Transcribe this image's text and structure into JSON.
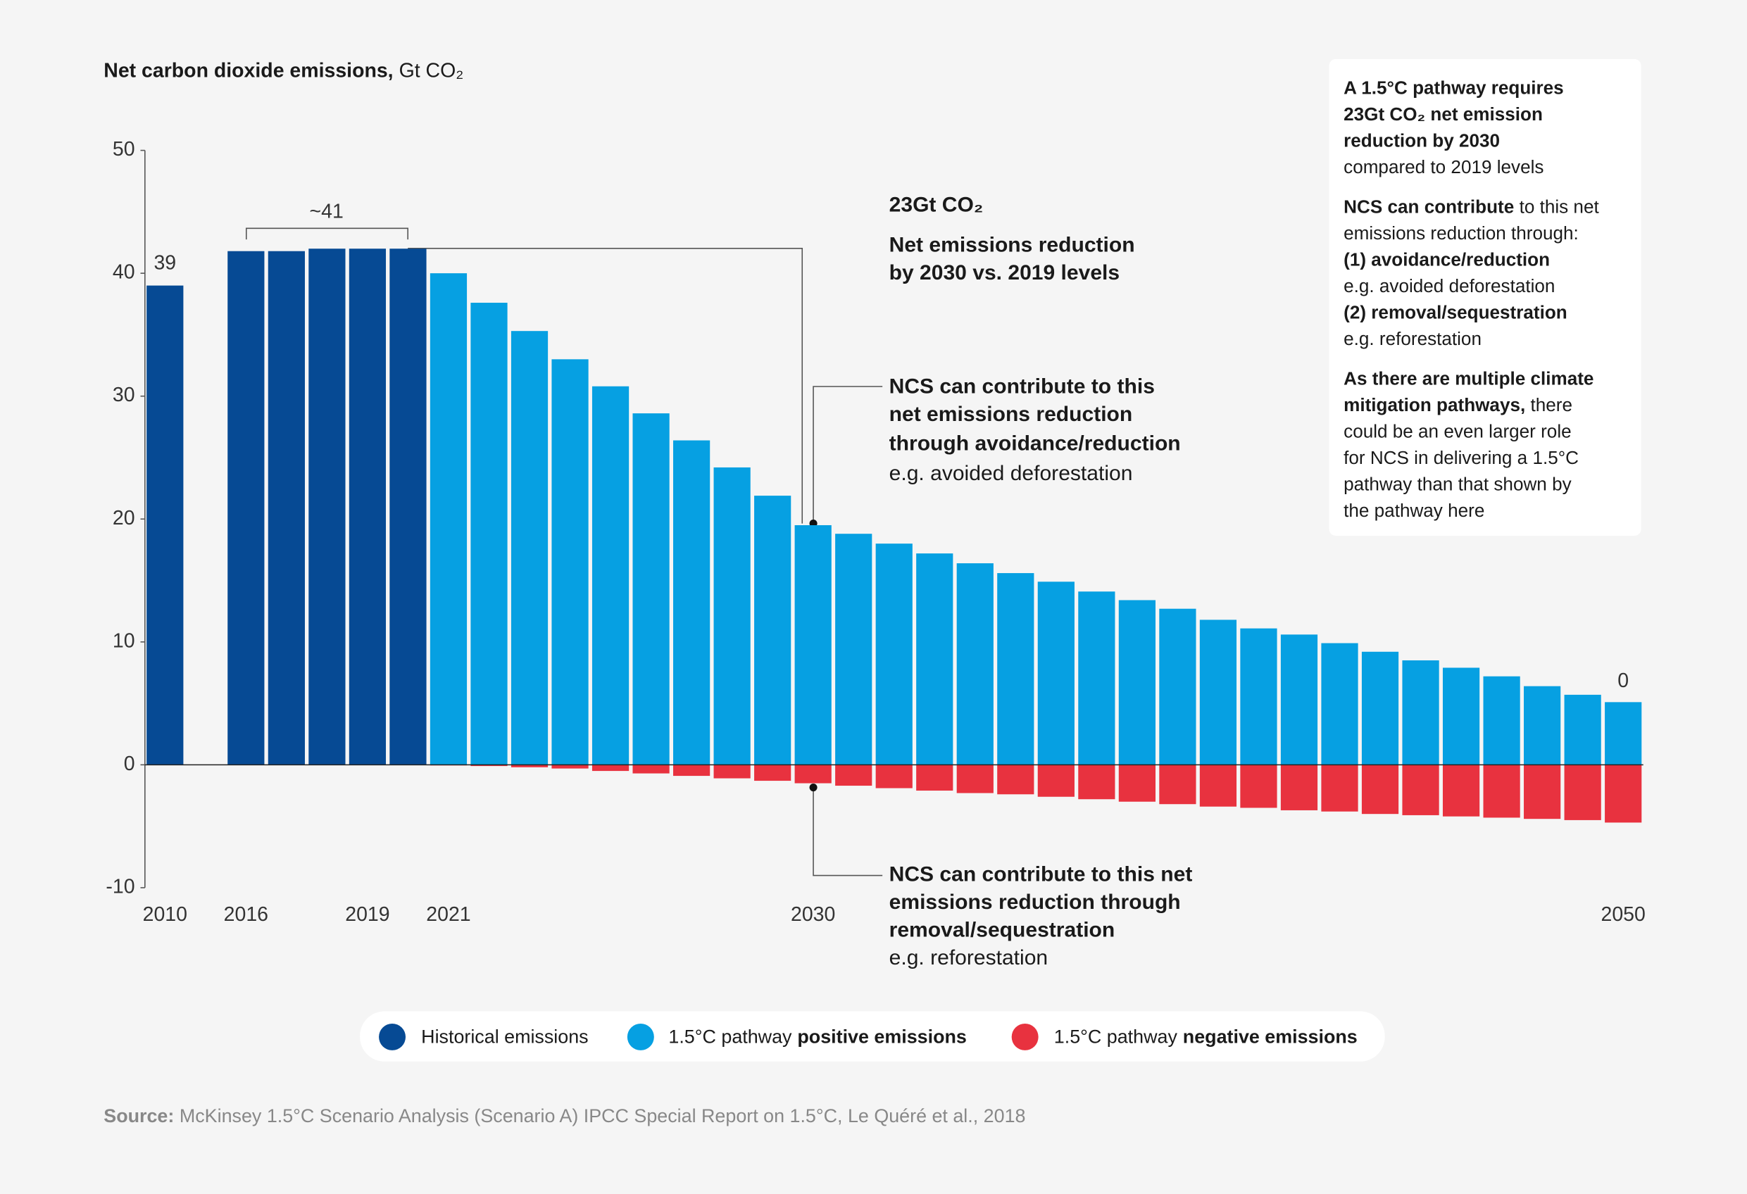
{
  "chart_data": {
    "type": "bar",
    "title": [
      {
        "text": "Net carbon dioxide emissions,",
        "bold": true
      },
      {
        "text": "Gt CO₂",
        "bold": false
      }
    ],
    "categories": [
      "2010",
      null,
      "2016",
      null,
      null,
      "2019",
      null,
      "2021",
      null,
      null,
      null,
      null,
      null,
      null,
      null,
      null,
      "2030",
      null,
      null,
      null,
      null,
      null,
      null,
      null,
      null,
      null,
      null,
      null,
      null,
      null,
      null,
      null,
      null,
      null,
      null,
      null,
      "2050"
    ],
    "series": [
      {
        "name": "Historical emissions",
        "color": "#064a94",
        "values": [
          39,
          null,
          41.8,
          41.8,
          42.0,
          42.0,
          42.0,
          null,
          null,
          null,
          null,
          null,
          null,
          null,
          null,
          null,
          null,
          null,
          null,
          null,
          null,
          null,
          null,
          null,
          null,
          null,
          null,
          null,
          null,
          null,
          null,
          null,
          null,
          null,
          null,
          null,
          null
        ]
      },
      {
        "name": "1.5°C pathway",
        "name_bold": "positive emissions",
        "color": "#06a0e2",
        "values": [
          null,
          null,
          null,
          null,
          null,
          null,
          null,
          40.0,
          37.6,
          35.3,
          33.0,
          30.8,
          28.6,
          26.4,
          24.2,
          21.9,
          19.5,
          18.8,
          18.0,
          17.2,
          16.4,
          15.6,
          14.9,
          14.1,
          13.4,
          12.7,
          11.8,
          11.1,
          10.6,
          9.9,
          9.2,
          8.5,
          7.9,
          7.2,
          6.4,
          5.7,
          5.1
        ]
      },
      {
        "name": "1.5°C pathway",
        "name_bold": "negative emissions",
        "color": "#e8323f",
        "values": [
          null,
          null,
          null,
          null,
          null,
          null,
          null,
          -0.05,
          -0.1,
          -0.2,
          -0.3,
          -0.5,
          -0.7,
          -0.9,
          -1.1,
          -1.3,
          -1.5,
          -1.7,
          -1.9,
          -2.1,
          -2.3,
          -2.4,
          -2.6,
          -2.8,
          -3.0,
          -3.2,
          -3.4,
          -3.5,
          -3.7,
          -3.8,
          -4.0,
          -4.1,
          -4.2,
          -4.3,
          -4.4,
          -4.5,
          -4.7
        ]
      }
    ],
    "ylim": [
      -10,
      50
    ],
    "yticks": [
      -10,
      0,
      10,
      20,
      30,
      40,
      50
    ],
    "bracket_label": "~41",
    "end_label": "0",
    "annotations": [
      [
        [
          {
            "text": "23Gt CO₂",
            "bold": true
          }
        ]
      ],
      [
        [
          {
            "text": "Net emissions reduction",
            "bold": true
          }
        ],
        [
          {
            "text": "by 2030 vs. 2019 levels",
            "bold": true
          }
        ]
      ],
      [
        [
          {
            "text": "NCS can contribute to this",
            "bold": true
          }
        ],
        [
          {
            "text": "net emissions reduction",
            "bold": true
          }
        ],
        [
          {
            "text": "through avoidance/reduction",
            "bold": true
          }
        ],
        [
          {
            "text": "e.g. avoided deforestation",
            "bold": false
          }
        ]
      ],
      [
        [
          {
            "text": "NCS can contribute to this net",
            "bold": true
          }
        ],
        [
          {
            "text": "emissions reduction through",
            "bold": true
          }
        ],
        [
          {
            "text": "removal/sequestration",
            "bold": true
          }
        ],
        [
          {
            "text": "e.g. reforestation",
            "bold": false
          }
        ]
      ]
    ],
    "side_box": [
      [
        [
          {
            "text": "A 1.5°C pathway requires",
            "bold": true
          }
        ],
        [
          {
            "text": "23Gt CO₂ net emission",
            "bold": true
          }
        ],
        [
          {
            "text": "reduction by 2030",
            "bold": true
          }
        ],
        [
          {
            "text": "compared to 2019 levels",
            "bold": false
          }
        ]
      ],
      [
        [
          {
            "text": "NCS can contribute",
            "bold": true
          },
          {
            "text": "to this net",
            "bold": false
          }
        ],
        [
          {
            "text": "emissions reduction through:",
            "bold": false
          }
        ],
        [
          {
            "text": "(1) avoidance/reduction",
            "bold": true
          }
        ],
        [
          {
            "text": "e.g. avoided deforestation",
            "bold": false
          }
        ],
        [
          {
            "text": "(2) removal/sequestration",
            "bold": true
          }
        ],
        [
          {
            "text": "e.g. reforestation",
            "bold": false
          }
        ]
      ],
      [
        [
          {
            "text": "As there are multiple climate",
            "bold": true
          }
        ],
        [
          {
            "text": "mitigation pathways,",
            "bold": true
          },
          {
            "text": "there",
            "bold": false
          }
        ],
        [
          {
            "text": "could be an even larger role",
            "bold": false
          }
        ],
        [
          {
            "text": "for NCS in delivering a 1.5°C",
            "bold": false
          }
        ],
        [
          {
            "text": "pathway than that shown by",
            "bold": false
          }
        ],
        [
          {
            "text": "the pathway here",
            "bold": false
          }
        ]
      ]
    ],
    "source": [
      {
        "text": "Source:",
        "bold": true
      },
      {
        "text": "McKinsey 1.5°C Scenario Analysis (Scenario A) IPCC Special Report on 1.5°C, Le Quéré et al., 2018",
        "bold": false
      }
    ]
  }
}
